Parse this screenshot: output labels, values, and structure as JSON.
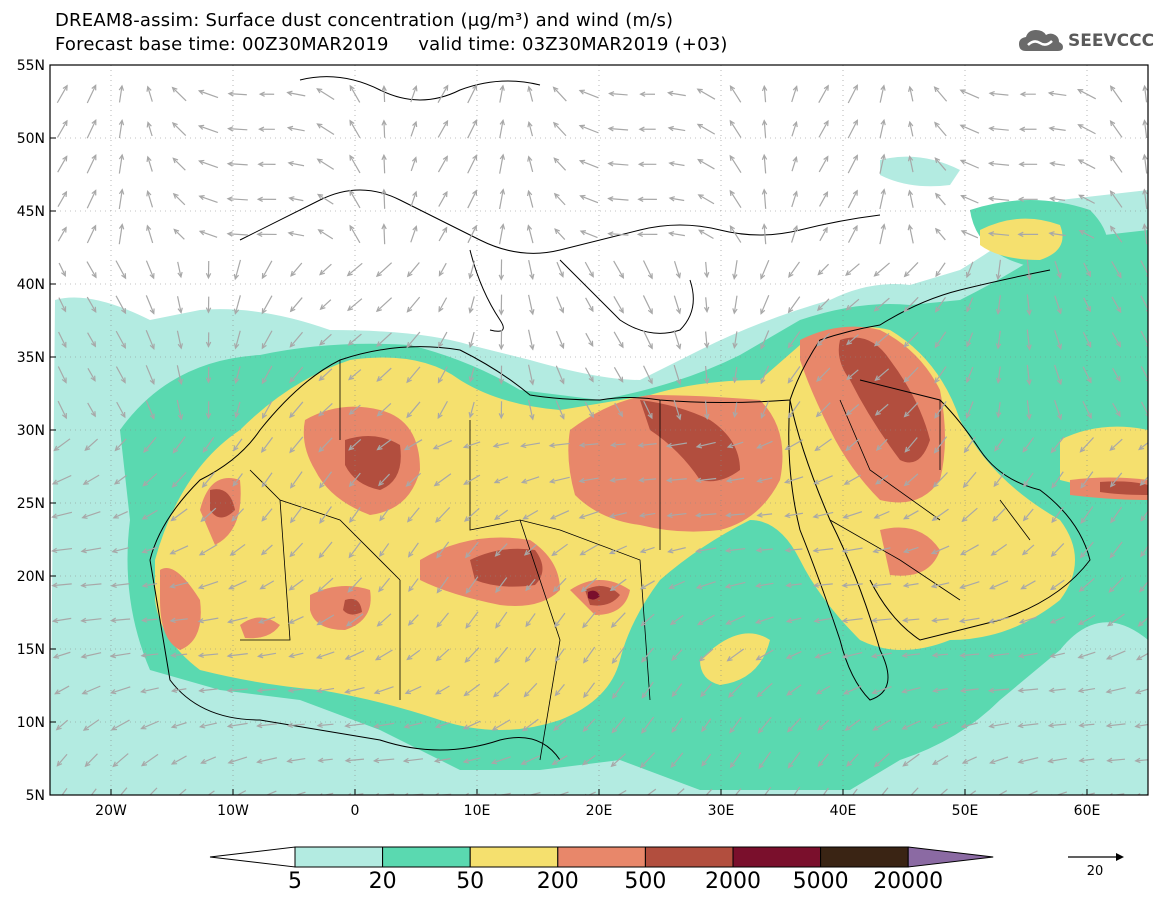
{
  "title": {
    "line1": "DREAM8-assim: Surface dust concentration (μg/m³) and wind (m/s)",
    "line2": "Forecast base time: 00Z30MAR2019     valid time: 03Z30MAR2019 (+03)"
  },
  "logo": {
    "text": "SEEVCCC",
    "icon": "cloud-icon"
  },
  "axes": {
    "lat_labels": [
      "55N",
      "50N",
      "45N",
      "40N",
      "35N",
      "30N",
      "25N",
      "20N",
      "15N",
      "10N",
      "5N"
    ],
    "lon_labels": [
      "20W",
      "10W",
      "0",
      "10E",
      "20E",
      "30E",
      "40E",
      "50E",
      "60E"
    ],
    "lat_range": [
      5,
      55
    ],
    "lon_range": [
      -25,
      65
    ],
    "grid": "dotted"
  },
  "colorbar": {
    "labels": [
      "5",
      "20",
      "50",
      "200",
      "500",
      "2000",
      "5000",
      "20000"
    ],
    "colors": [
      "#ffffff",
      "#b3ebe1",
      "#5ad9b0",
      "#f5e06e",
      "#e8876a",
      "#b24e3e",
      "#7a0f2c",
      "#3a2414",
      "#8b6aa3"
    ]
  },
  "wind_reference": {
    "label": "20",
    "icon": "arrow-right-icon"
  },
  "colors": {
    "arrow": "#a8a8a8",
    "border": "#000000",
    "background": "#ffffff"
  }
}
